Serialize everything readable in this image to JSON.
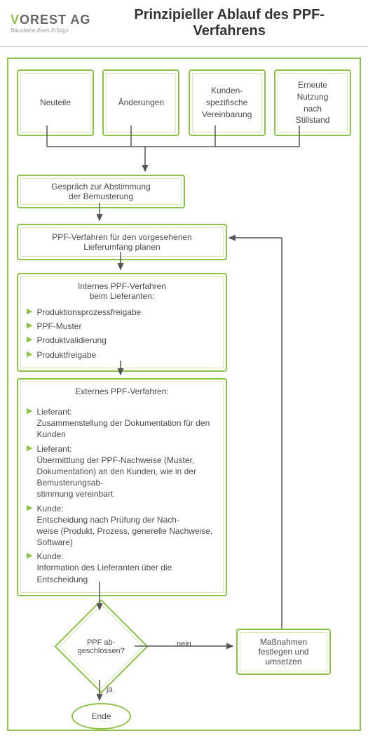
{
  "header": {
    "logo_prefix": "V",
    "logo_rest": "OREST AG",
    "logo_sub": "Bausteine Ihres Erfolgs",
    "title": "Prinzipieller Ablauf des PPF-Verfahrens"
  },
  "colors": {
    "green": "#8bc34a",
    "text": "#4a4a4a",
    "arrow": "#555"
  },
  "top_boxes": [
    {
      "label": "Neuteile"
    },
    {
      "label": "Änderungen"
    },
    {
      "label": "Kunden-\nspezifische\nVereinbarung"
    },
    {
      "label": "Erneute\nNutzung\nnach\nStillstand"
    }
  ],
  "step_meeting": "Gespräch zur Abstimmung\nder Bemusterung",
  "step_plan": "PPF-Verfahren für den vorgesehenen\nLieferumfang planen",
  "internal": {
    "title": "Internes PPF-Verfahren\nbeim Lieferanten:",
    "items": [
      "Produktionsprozessfreigabe",
      "PPF-Muster",
      "Produktvalidierung",
      "Produktfreigabe"
    ]
  },
  "external": {
    "title": "Externes PPF-Verfahren:",
    "items": [
      {
        "who": "Lieferant:",
        "text": "Zusammenstellung der Dokumentation für den Kunden"
      },
      {
        "who": "Lieferant:",
        "text": "Übermittlung der PPF-Nachweise (Muster, Dokumentation) an den Kunden, wie in der Bemusterungsab-\nstimmung vereinbart"
      },
      {
        "who": "Kunde:",
        "text": "Entscheidung nach Prüfung der Nach-\nweise (Produkt, Prozess, generelle Nachweise, Software)"
      },
      {
        "who": "Kunde:",
        "text": "Information des Lieferanten über die Entscheidung"
      }
    ]
  },
  "decision": "PPF ab-\ngeschlossen?",
  "decision_yes": "ja",
  "decision_no": "nein",
  "action": "Maßnahmen\nfestlegen und\numsetzen",
  "end": "Ende"
}
